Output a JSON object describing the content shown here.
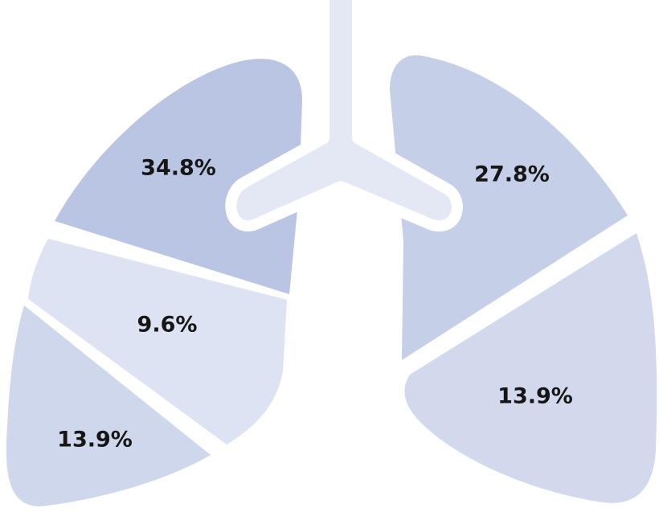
{
  "lobes": [
    {
      "label": "34.8%"
    },
    {
      "label": "9.6%"
    },
    {
      "label": "13.9%"
    },
    {
      "label": "27.8%"
    },
    {
      "label": "13.9%"
    }
  ]
}
